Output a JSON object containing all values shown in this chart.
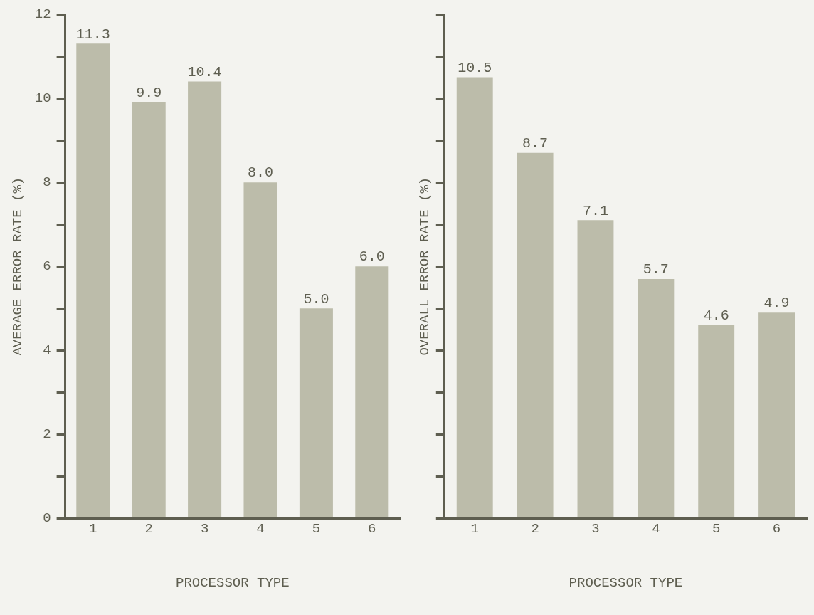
{
  "chart_data": [
    {
      "type": "bar",
      "xlabel": "PROCESSOR TYPE",
      "ylabel": "AVERAGE ERROR RATE (%)",
      "categories": [
        "1",
        "2",
        "3",
        "4",
        "5",
        "6"
      ],
      "values": [
        11.3,
        9.9,
        10.4,
        8.0,
        5.0,
        6.0
      ],
      "value_labels": [
        "11.3",
        "9.9",
        "10.4",
        "8.0",
        "5.0",
        "6.0"
      ],
      "color": "#bcbcaa",
      "ylim": [
        0,
        12
      ],
      "yticks": [
        0,
        {
          "value": 1,
          "label": null
        },
        2,
        {
          "value": 3,
          "label": null
        },
        4,
        {
          "value": 5,
          "label": null
        },
        6,
        {
          "value": 7,
          "label": null
        },
        8,
        {
          "value": 9,
          "label": null
        },
        10,
        {
          "value": 11,
          "label": null
        },
        12
      ],
      "grid": false
    },
    {
      "type": "bar",
      "xlabel": "PROCESSOR TYPE",
      "ylabel": "OVERALL ERROR RATE (%)",
      "categories": [
        "1",
        "2",
        "3",
        "4",
        "5",
        "6"
      ],
      "values": [
        10.5,
        8.7,
        7.1,
        5.7,
        4.6,
        4.9
      ],
      "value_labels": [
        "10.5",
        "8.7",
        "7.1",
        "5.7",
        "4.6",
        "4.9"
      ],
      "color": "#bcbcaa",
      "ylim": [
        0,
        12
      ],
      "yticks": [
        {
          "value": 0,
          "label": null
        },
        {
          "value": 1,
          "label": null
        },
        {
          "value": 2,
          "label": null
        },
        {
          "value": 3,
          "label": null
        },
        {
          "value": 4,
          "label": null
        },
        {
          "value": 5,
          "label": null
        },
        {
          "value": 6,
          "label": null
        },
        {
          "value": 7,
          "label": null
        },
        {
          "value": 8,
          "label": null
        },
        {
          "value": 9,
          "label": null
        },
        {
          "value": 10,
          "label": null
        },
        {
          "value": 11,
          "label": null
        },
        {
          "value": 12,
          "label": null
        }
      ],
      "grid": false,
      "tick_labels": "x"
    }
  ]
}
